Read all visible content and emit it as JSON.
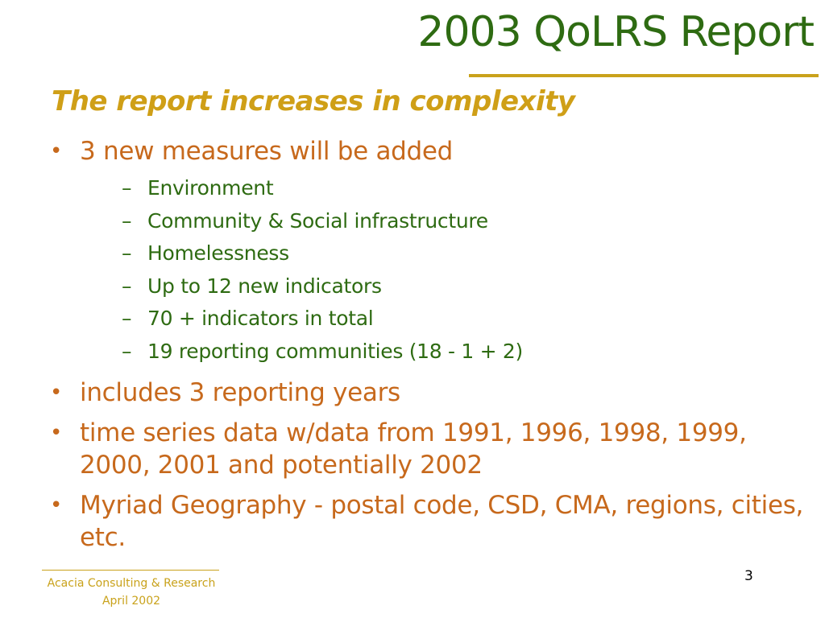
{
  "slide": {
    "title": "2003 QoLRS Report",
    "subtitle": "The report increases in complexity",
    "bullets": [
      {
        "text": "3 new measures will be added",
        "sub": [
          "Environment",
          "Community & Social infrastructure",
          "Homelessness",
          "Up to 12 new indicators",
          "70 + indicators in total",
          "19 reporting communities (18 - 1 + 2)"
        ]
      },
      {
        "text": "includes 3 reporting years"
      },
      {
        "text": "time series data w/data from 1991, 1996, 1998, 1999, 2000, 2001 and potentially 2002"
      },
      {
        "text": "Myriad Geography - postal code, CSD, CMA, regions, cities, etc."
      }
    ],
    "bullet_marker": "•",
    "sub_marker": "–",
    "footer": {
      "line1": "Acacia Consulting & Research",
      "line2": "April 2002"
    },
    "page_number": "3"
  },
  "colors": {
    "title": "#2e6b12",
    "subtitle": "#cf9f17",
    "bullet_text": "#c7691c",
    "sub_text": "#2e6b12",
    "rule": "#c9a21b",
    "footer": "#c9a21b"
  }
}
